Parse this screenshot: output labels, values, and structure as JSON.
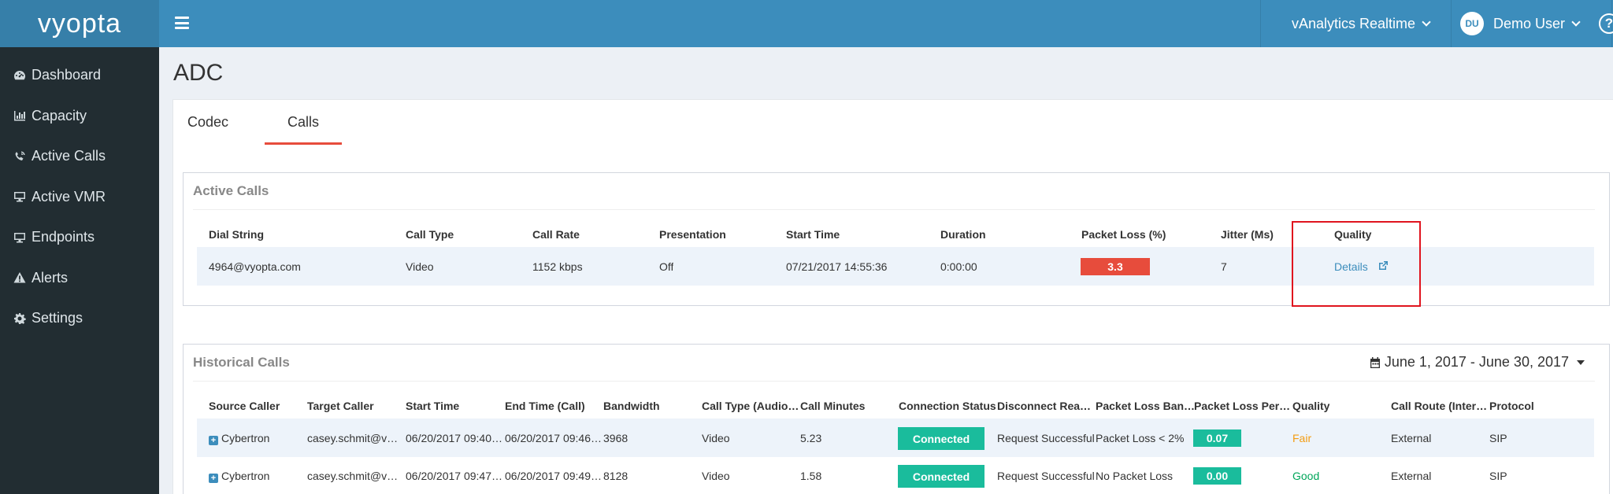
{
  "brand": "vyopta",
  "sidebar": {
    "items": [
      {
        "label": "Dashboard",
        "icon": "dashboard-icon"
      },
      {
        "label": "Capacity",
        "icon": "bar-chart-icon"
      },
      {
        "label": "Active Calls",
        "icon": "phone-volume-icon"
      },
      {
        "label": "Active VMR",
        "icon": "desktop-icon"
      },
      {
        "label": "Endpoints",
        "icon": "desktop-icon"
      },
      {
        "label": "Alerts",
        "icon": "warning-icon"
      },
      {
        "label": "Settings",
        "icon": "gear-icon"
      }
    ]
  },
  "topbar": {
    "product_menu": "vAnalytics Realtime",
    "user_initials": "DU",
    "user_name": "Demo User",
    "help": "?"
  },
  "page": {
    "title": "ADC",
    "tabs": [
      "Codec",
      "Calls"
    ],
    "active_tab": "Calls"
  },
  "active_calls": {
    "title": "Active Calls",
    "columns": [
      "Dial String",
      "Call Type",
      "Call Rate",
      "Presentation",
      "Start Time",
      "Duration",
      "Packet Loss (%)",
      "Jitter (Ms)",
      "Quality"
    ],
    "rows": [
      {
        "dial_string": "4964@vyopta.com",
        "call_type": "Video",
        "call_rate": "1152 kbps",
        "presentation": "Off",
        "start_time": "07/21/2017 14:55:36",
        "duration": "0:00:00",
        "packet_loss": "3.3",
        "jitter": "7",
        "quality": "Details"
      }
    ]
  },
  "historical_calls": {
    "title": "Historical Calls",
    "date_range": "June 1, 2017 - June 30, 2017",
    "columns": [
      "Source Caller",
      "Target Caller",
      "Start Time",
      "End Time (Call)",
      "Bandwidth",
      "Call Type (Audio…",
      "Call Minutes",
      "Connection Status",
      "Disconnect Rea…",
      "Packet Loss Ban…",
      "Packet Loss Per…",
      "Quality",
      "Call Route (Inter…",
      "Protocol"
    ],
    "rows": [
      {
        "source": "Cybertron",
        "target": "casey.schmit@vy…",
        "start": "06/20/2017 09:40…",
        "end": "06/20/2017 09:46…",
        "bandwidth": "3968",
        "call_type": "Video",
        "minutes": "5.23",
        "status": "Connected",
        "disconnect": "Request Successful",
        "loss_band": "Packet Loss < 2%",
        "loss_pct": "0.07",
        "quality": "Fair",
        "route": "External",
        "protocol": "SIP"
      },
      {
        "source": "Cybertron",
        "target": "casey.schmit@vy…",
        "start": "06/20/2017 09:47…",
        "end": "06/20/2017 09:49…",
        "bandwidth": "8128",
        "call_type": "Video",
        "minutes": "1.58",
        "status": "Connected",
        "disconnect": "Request Successful",
        "loss_band": "No Packet Loss",
        "loss_pct": "0.00",
        "quality": "Good",
        "route": "External",
        "protocol": "SIP"
      }
    ]
  },
  "colors": {
    "topbar": "#3c8dbc",
    "sidebar": "#222d32",
    "badge_red": "#e74c3c",
    "badge_green": "#1abc9c",
    "fair": "#f39c12",
    "good": "#00a65a"
  }
}
